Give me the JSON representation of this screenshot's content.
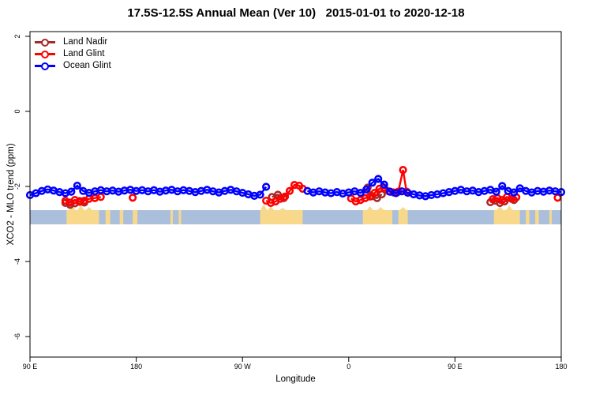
{
  "title": "17.5S-12.5S Annual Mean (Ver 10)   2015-01-01 to 2020-12-18",
  "legend": {
    "items": [
      {
        "label": "Land Nadir",
        "color": "#A52A2A"
      },
      {
        "label": "Land Glint",
        "color": "#FF0000"
      },
      {
        "label": "Ocean Glint",
        "color": "#0000FF"
      }
    ]
  },
  "axes": {
    "x": {
      "label": "Longitude",
      "ticks": [
        {
          "pos": 0,
          "label": "90 E"
        },
        {
          "pos": 90,
          "label": "180"
        },
        {
          "pos": 180,
          "label": "90 W"
        },
        {
          "pos": 270,
          "label": "0"
        },
        {
          "pos": 360,
          "label": "90 E"
        },
        {
          "pos": 450,
          "label": "180"
        }
      ]
    },
    "y": {
      "label": "XCO2 - MLO trend (ppm)",
      "ticks": [
        {
          "val": 2,
          "label": "2"
        },
        {
          "val": 0,
          "label": "0"
        },
        {
          "val": -2,
          "label": "-2"
        },
        {
          "val": -4,
          "label": "-4"
        },
        {
          "val": -6,
          "label": "-6"
        }
      ]
    }
  },
  "map_strip": {
    "ocean_color": "#AABFDC",
    "land_color": "#F8D88A",
    "description": "thin world-map band at ~-2.6 to -3.0 ppm: ocean blue with tan land profiles",
    "patches": [
      {
        "from": 31,
        "to": 58.5,
        "peaks": [
          [
            36,
            5
          ],
          [
            43,
            7
          ],
          [
            50,
            4
          ]
        ]
      },
      {
        "from": 64,
        "to": 68,
        "peaks": []
      },
      {
        "from": 76,
        "to": 79,
        "peaks": []
      },
      {
        "from": 87,
        "to": 91,
        "peaks": []
      },
      {
        "from": 119,
        "to": 121,
        "peaks": []
      },
      {
        "from": 126,
        "to": 128,
        "peaks": []
      },
      {
        "from": 195,
        "to": 231,
        "peaks": [
          [
            198,
            8
          ],
          [
            204,
            5
          ],
          [
            214,
            3
          ]
        ]
      },
      {
        "from": 282,
        "to": 307,
        "peaks": [
          [
            288,
            5
          ],
          [
            297,
            4
          ]
        ]
      },
      {
        "from": 312,
        "to": 320,
        "peaks": [
          [
            316,
            4
          ]
        ]
      },
      {
        "from": 393,
        "to": 415,
        "peaks": [
          [
            398,
            5
          ],
          [
            406,
            6
          ]
        ]
      },
      {
        "from": 420,
        "to": 423,
        "peaks": []
      },
      {
        "from": 428,
        "to": 431,
        "peaks": []
      },
      {
        "from": 440,
        "to": 442,
        "peaks": []
      }
    ]
  },
  "chart_data": {
    "type": "scatter",
    "title": "17.5S-12.5S Annual Mean (Ver 10)   2015-01-01 to 2020-12-18",
    "xlabel": "Longitude",
    "ylabel": "XCO2 - MLO trend (ppm)",
    "x_units": "degrees east of 90E; axis wraps 90E→180→90W→0→90E→180",
    "x_tick_positions": [
      0,
      90,
      180,
      270,
      360,
      450
    ],
    "x_tick_labels": [
      "90 E",
      "180",
      "90 W",
      "0",
      "90 E",
      "180"
    ],
    "ylim": [
      -6.5,
      2.1
    ],
    "grid": false,
    "legend_position": "top-left",
    "series": [
      {
        "name": "Land Nadir",
        "color": "#A52A2A",
        "marker": "open-circle",
        "points": [
          [
            30,
            -2.44
          ],
          [
            34,
            -2.49
          ],
          [
            38,
            -2.45
          ],
          [
            42,
            -2.39
          ],
          [
            46,
            -2.43
          ],
          [
            205,
            -2.28
          ],
          [
            210,
            -2.22
          ],
          [
            215,
            -2.31
          ],
          [
            286,
            -2.03
          ],
          [
            290,
            -2.26
          ],
          [
            294,
            -2.31
          ],
          [
            298,
            -2.21
          ],
          [
            390,
            -2.42
          ],
          [
            394,
            -2.38
          ],
          [
            398,
            -2.44
          ],
          [
            402,
            -2.4
          ],
          [
            410,
            -2.36
          ]
        ]
      },
      {
        "name": "Land Glint",
        "color": "#FF0000",
        "marker": "open-circle",
        "points": [
          [
            30,
            -2.38
          ],
          [
            34,
            -2.43
          ],
          [
            38,
            -2.36
          ],
          [
            42,
            -2.41
          ],
          [
            46,
            -2.38
          ],
          [
            50,
            -2.33
          ],
          [
            55,
            -2.31
          ],
          [
            60,
            -2.28
          ],
          [
            87,
            -2.3
          ],
          [
            200,
            -2.38
          ],
          [
            204,
            -2.44
          ],
          [
            208,
            -2.4
          ],
          [
            212,
            -2.33
          ],
          [
            216,
            -2.27
          ],
          [
            220,
            -2.12
          ],
          [
            224,
            -1.96
          ],
          [
            228,
            -1.98
          ],
          [
            231,
            -2.06
          ],
          [
            272,
            -2.32
          ],
          [
            276,
            -2.4
          ],
          [
            280,
            -2.36
          ],
          [
            284,
            -2.31
          ],
          [
            288,
            -2.27
          ],
          [
            292,
            -2.17
          ],
          [
            296,
            -2.06
          ],
          [
            300,
            -2.03
          ],
          [
            304,
            -2.13
          ],
          [
            308,
            -2.16
          ],
          [
            312,
            -2.14
          ],
          [
            316,
            -1.56
          ],
          [
            319,
            -2.14
          ],
          [
            392,
            -2.34
          ],
          [
            396,
            -2.31
          ],
          [
            400,
            -2.36
          ],
          [
            404,
            -2.28
          ],
          [
            408,
            -2.33
          ],
          [
            412,
            -2.29
          ],
          [
            447,
            -2.3
          ]
        ]
      },
      {
        "name": "Ocean Glint",
        "color": "#0000FF",
        "marker": "open-circle",
        "points": [
          [
            0,
            -2.23
          ],
          [
            5,
            -2.18
          ],
          [
            10,
            -2.12
          ],
          [
            15,
            -2.08
          ],
          [
            20,
            -2.11
          ],
          [
            25,
            -2.15
          ],
          [
            30,
            -2.18
          ],
          [
            35,
            -2.14
          ],
          [
            40,
            -1.98
          ],
          [
            45,
            -2.12
          ],
          [
            50,
            -2.17
          ],
          [
            55,
            -2.13
          ],
          [
            60,
            -2.1
          ],
          [
            65,
            -2.13
          ],
          [
            70,
            -2.11
          ],
          [
            75,
            -2.14
          ],
          [
            80,
            -2.11
          ],
          [
            85,
            -2.09
          ],
          [
            90,
            -2.12
          ],
          [
            95,
            -2.1
          ],
          [
            100,
            -2.13
          ],
          [
            105,
            -2.1
          ],
          [
            110,
            -2.14
          ],
          [
            115,
            -2.11
          ],
          [
            120,
            -2.09
          ],
          [
            125,
            -2.13
          ],
          [
            130,
            -2.1
          ],
          [
            135,
            -2.12
          ],
          [
            140,
            -2.15
          ],
          [
            145,
            -2.12
          ],
          [
            150,
            -2.09
          ],
          [
            155,
            -2.13
          ],
          [
            160,
            -2.16
          ],
          [
            165,
            -2.12
          ],
          [
            170,
            -2.09
          ],
          [
            175,
            -2.13
          ],
          [
            180,
            -2.17
          ],
          [
            185,
            -2.21
          ],
          [
            190,
            -2.25
          ],
          [
            195,
            -2.22
          ],
          [
            200,
            -2.01
          ],
          [
            235,
            -2.12
          ],
          [
            240,
            -2.16
          ],
          [
            245,
            -2.13
          ],
          [
            250,
            -2.16
          ],
          [
            255,
            -2.18
          ],
          [
            260,
            -2.15
          ],
          [
            265,
            -2.19
          ],
          [
            270,
            -2.16
          ],
          [
            275,
            -2.13
          ],
          [
            280,
            -2.17
          ],
          [
            285,
            -2.08
          ],
          [
            290,
            -1.9
          ],
          [
            295,
            -1.8
          ],
          [
            300,
            -1.95
          ],
          [
            305,
            -2.14
          ],
          [
            310,
            -2.18
          ],
          [
            315,
            -2.13
          ],
          [
            320,
            -2.17
          ],
          [
            325,
            -2.21
          ],
          [
            330,
            -2.24
          ],
          [
            335,
            -2.26
          ],
          [
            340,
            -2.23
          ],
          [
            345,
            -2.21
          ],
          [
            350,
            -2.18
          ],
          [
            355,
            -2.15
          ],
          [
            360,
            -2.12
          ],
          [
            365,
            -2.09
          ],
          [
            370,
            -2.13
          ],
          [
            375,
            -2.11
          ],
          [
            380,
            -2.15
          ],
          [
            385,
            -2.12
          ],
          [
            390,
            -2.09
          ],
          [
            395,
            -2.14
          ],
          [
            400,
            -1.99
          ],
          [
            405,
            -2.12
          ],
          [
            410,
            -2.16
          ],
          [
            415,
            -2.05
          ],
          [
            420,
            -2.12
          ],
          [
            425,
            -2.16
          ],
          [
            430,
            -2.12
          ],
          [
            435,
            -2.14
          ],
          [
            440,
            -2.11
          ],
          [
            445,
            -2.13
          ],
          [
            450,
            -2.15
          ]
        ]
      }
    ]
  }
}
